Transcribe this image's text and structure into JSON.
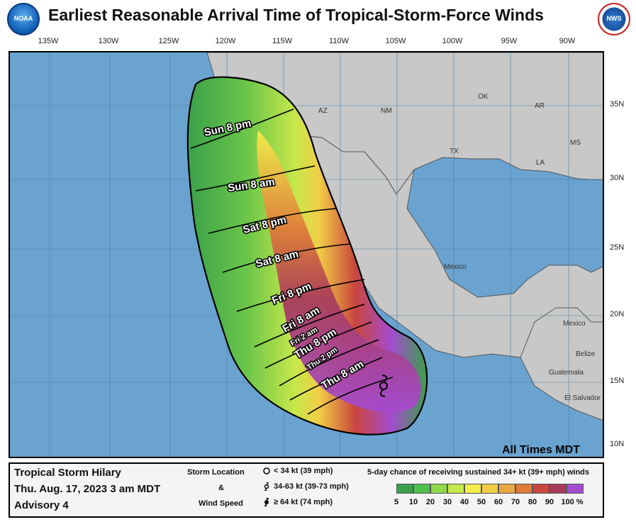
{
  "header": {
    "title": "Earliest Reasonable Arrival Time of Tropical-Storm-Force Winds",
    "left_logo_text": "NOAA",
    "right_logo_text": "NWS"
  },
  "axes": {
    "longitudes": [
      "135W",
      "130W",
      "125W",
      "120W",
      "115W",
      "110W",
      "105W",
      "100W",
      "95W",
      "90W"
    ],
    "latitudes": [
      "35N",
      "30N",
      "25N",
      "20N",
      "15N",
      "10N"
    ]
  },
  "map": {
    "region_labels": [
      "AZ",
      "NM",
      "OK",
      "AR",
      "TX",
      "LA",
      "MS",
      "Mexico",
      "Mexico",
      "Belize",
      "Guatemala",
      "El Salvador"
    ],
    "arrival_labels": [
      "Sun 8 pm",
      "Sun 8 am",
      "Sat 8 pm",
      "Sat 8 am",
      "Fri 8 pm",
      "Fri 8 am",
      "Fri 2 am",
      "Thu 8 pm",
      "Thu 2 pm",
      "Thu 8 am"
    ],
    "times_note": "All Times MDT",
    "colors": {
      "ocean": "#6aa3d0",
      "land": "#c8c8c8",
      "outline": "#000000"
    }
  },
  "legend": {
    "storm_name": "Tropical Storm Hilary",
    "issue_time": "Thu. Aug. 17, 2023  3 am MDT",
    "advisory": "Advisory 4",
    "storm_location_label": "Storm Location",
    "ampersand": "&",
    "wind_speed_label": "Wind Speed",
    "symbols": [
      {
        "icon": "circle-icon",
        "text": "< 34 kt (39 mph)"
      },
      {
        "icon": "tropical-storm-icon",
        "text": "34-63 kt (39-73 mph)"
      },
      {
        "icon": "hurricane-icon",
        "text": "≥ 64 kt (74 mph)"
      }
    ],
    "probability_title": "5-day chance of receiving sustained 34+ kt (39+ mph) winds",
    "probability_ticks": [
      "5",
      "10",
      "20",
      "30",
      "40",
      "50",
      "60",
      "70",
      "80",
      "90",
      "100 %"
    ],
    "probability_colors": [
      "#3aa04a",
      "#4fc14d",
      "#8fd84a",
      "#c7e84a",
      "#f2ef4a",
      "#f1cd46",
      "#e8a843",
      "#e07b3a",
      "#c9463d",
      "#a83b5a",
      "#a44bd0"
    ]
  }
}
